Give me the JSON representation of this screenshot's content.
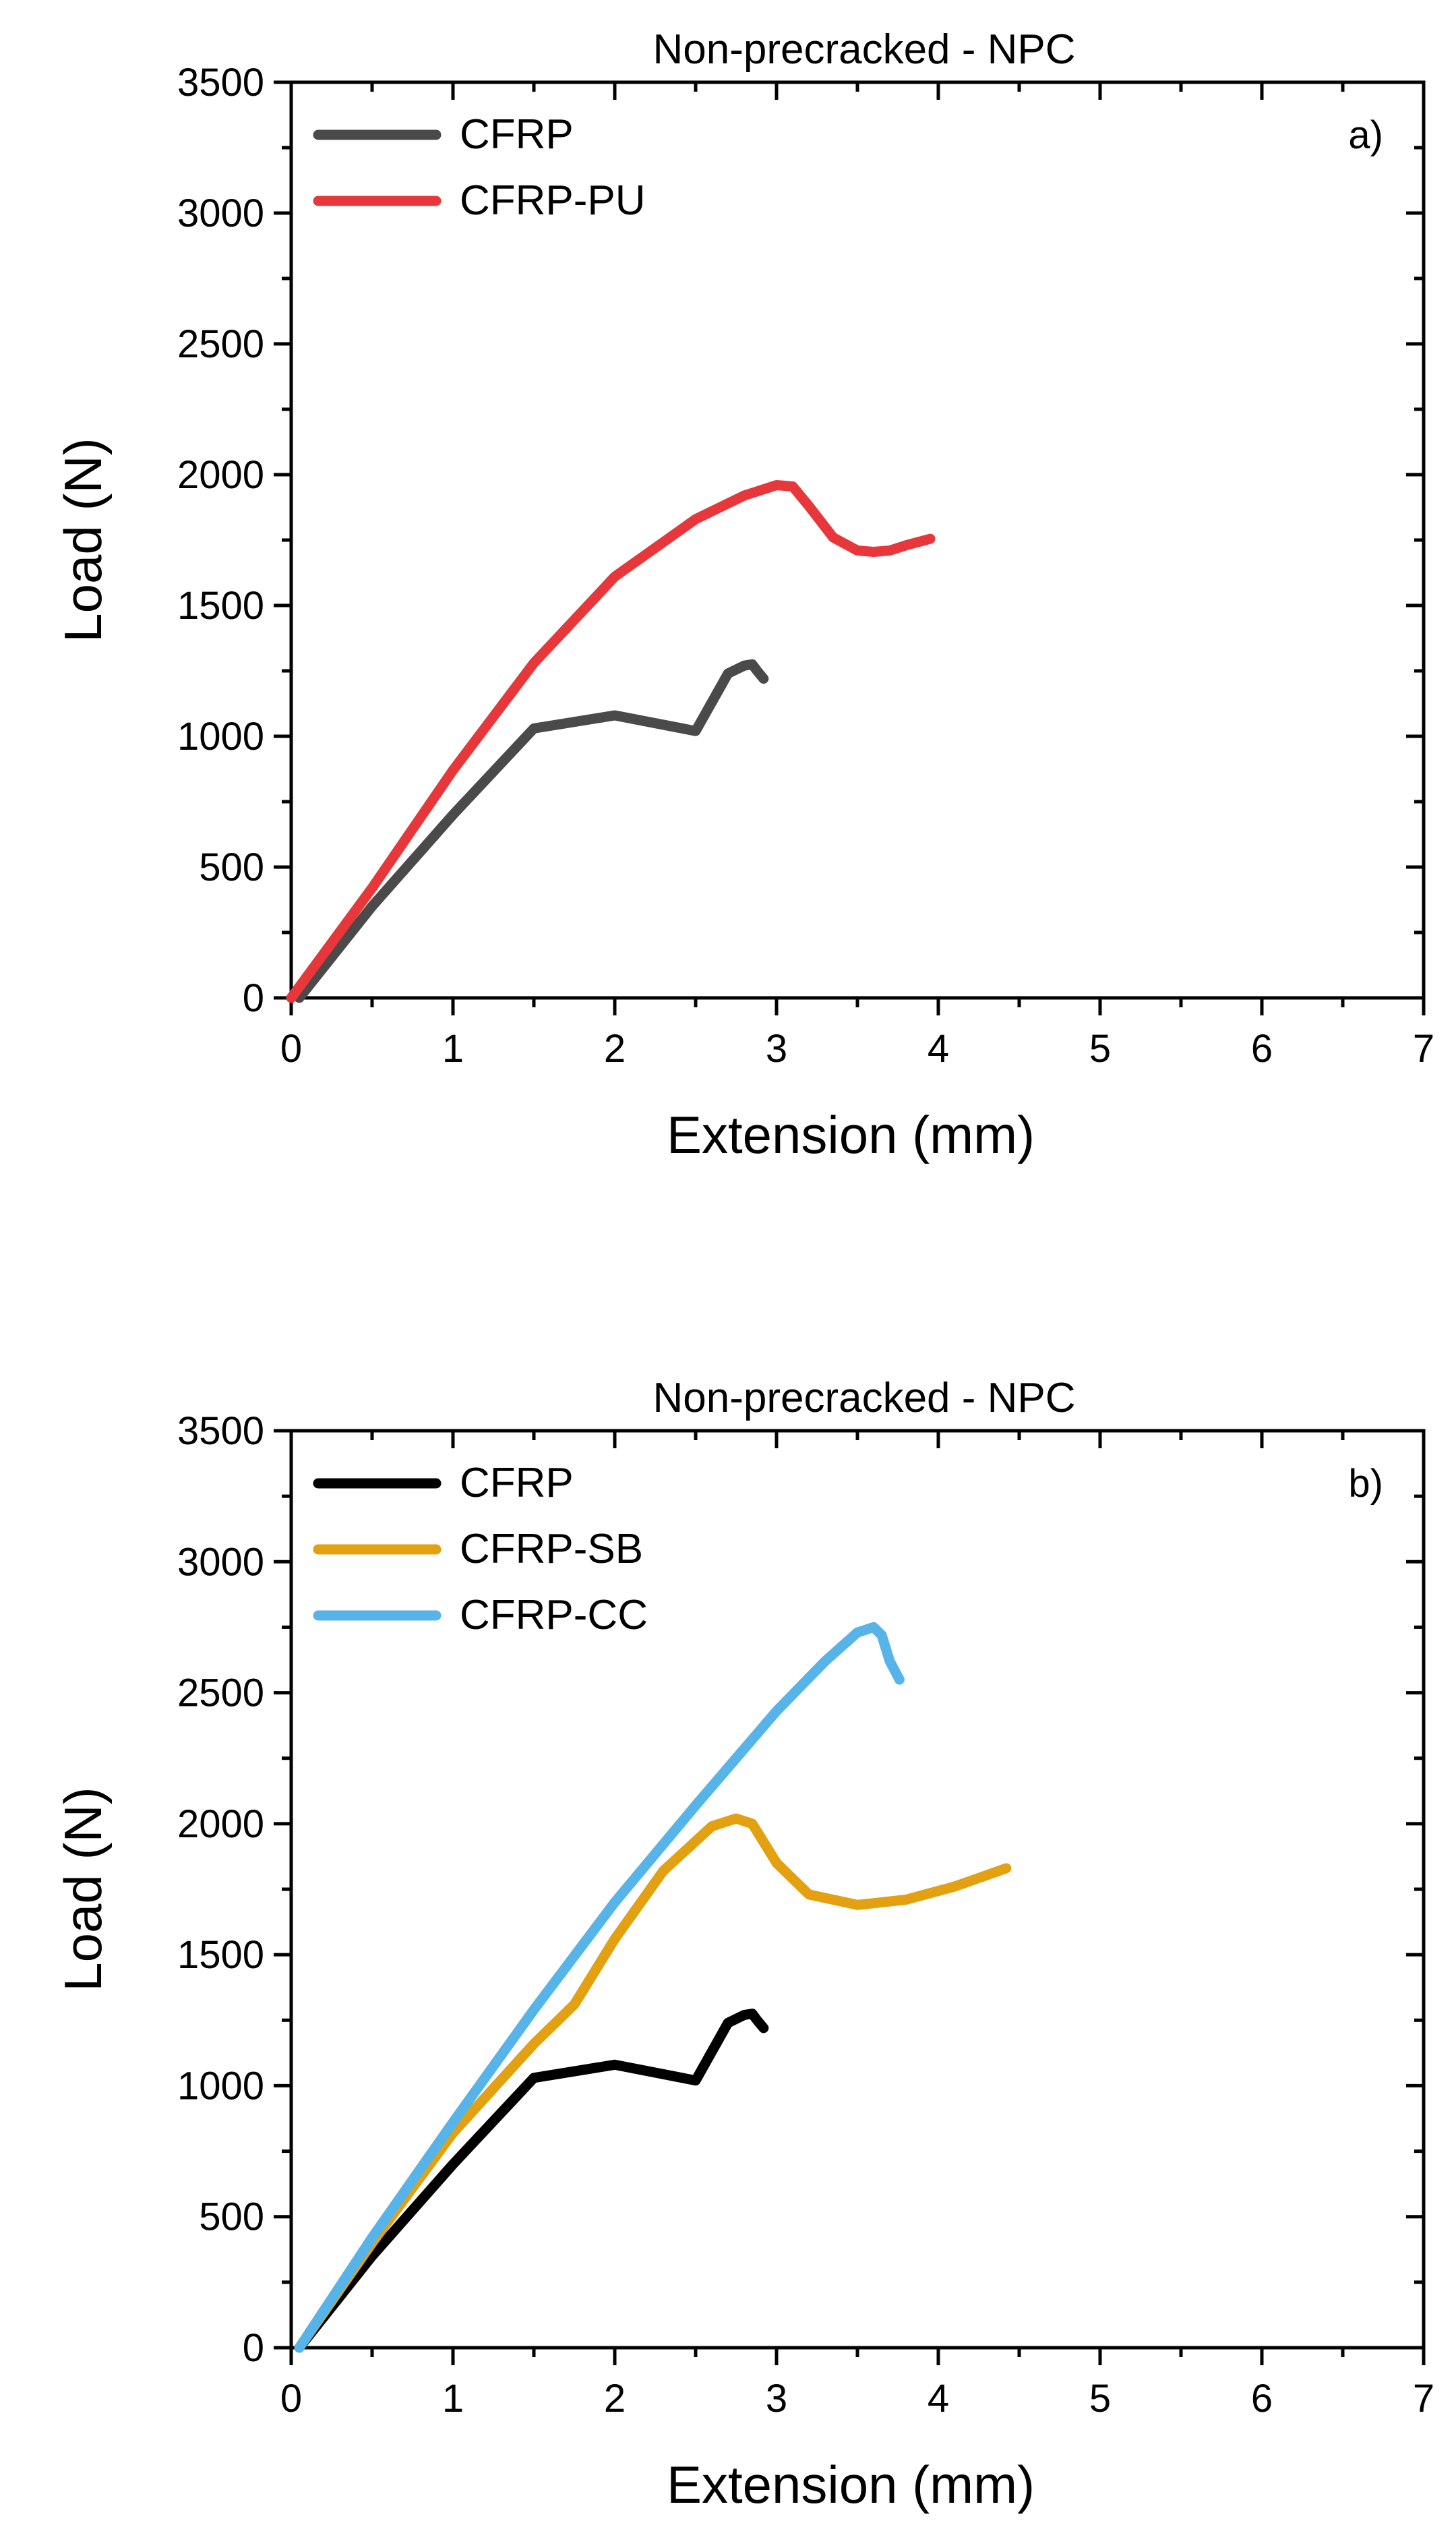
{
  "chart_data": [
    {
      "type": "line",
      "title": "Non-precracked - NPC",
      "panel_label": "a)",
      "xlabel": "Extension (mm)",
      "ylabel": "Load (N)",
      "xlim": [
        0,
        7
      ],
      "ylim": [
        0,
        3500
      ],
      "xticks": [
        "0",
        "1",
        "2",
        "3",
        "4",
        "5",
        "6",
        "7"
      ],
      "yticks": [
        "0",
        "500",
        "1000",
        "1500",
        "2000",
        "2500",
        "3000",
        "3500"
      ],
      "legend_position": "top-left",
      "series": [
        {
          "name": "CFRP",
          "color": "#4a4a4a",
          "x": [
            0.05,
            0.5,
            1.0,
            1.5,
            2.0,
            2.5,
            2.7,
            2.8,
            2.85,
            2.88,
            2.92
          ],
          "y": [
            0,
            350,
            700,
            1030,
            1080,
            1020,
            1240,
            1270,
            1275,
            1250,
            1220
          ]
        },
        {
          "name": "CFRP-PU",
          "color": "#e8373a",
          "x": [
            0.0,
            0.5,
            1.0,
            1.5,
            2.0,
            2.5,
            2.8,
            3.0,
            3.1,
            3.2,
            3.35,
            3.5,
            3.6,
            3.7,
            3.8,
            3.95
          ],
          "y": [
            0,
            420,
            870,
            1280,
            1610,
            1830,
            1920,
            1960,
            1955,
            1880,
            1760,
            1710,
            1705,
            1710,
            1730,
            1755
          ]
        }
      ]
    },
    {
      "type": "line",
      "title": "Non-precracked - NPC",
      "panel_label": "b)",
      "xlabel": "Extension (mm)",
      "ylabel": "Load (N)",
      "xlim": [
        0,
        7
      ],
      "ylim": [
        0,
        3500
      ],
      "xticks": [
        "0",
        "1",
        "2",
        "3",
        "4",
        "5",
        "6",
        "7"
      ],
      "yticks": [
        "0",
        "500",
        "1000",
        "1500",
        "2000",
        "2500",
        "3000",
        "3500"
      ],
      "legend_position": "top-left",
      "series": [
        {
          "name": "CFRP",
          "color": "#000000",
          "x": [
            0.05,
            0.5,
            1.0,
            1.5,
            2.0,
            2.5,
            2.7,
            2.8,
            2.85,
            2.88,
            2.92
          ],
          "y": [
            0,
            350,
            700,
            1030,
            1080,
            1020,
            1240,
            1270,
            1275,
            1250,
            1220
          ]
        },
        {
          "name": "CFRP-SB",
          "color": "#e3a010",
          "x": [
            0.05,
            0.5,
            1.0,
            1.5,
            1.75,
            2.0,
            2.3,
            2.6,
            2.75,
            2.85,
            3.0,
            3.2,
            3.5,
            3.8,
            4.1,
            4.42
          ],
          "y": [
            0,
            400,
            820,
            1160,
            1310,
            1560,
            1820,
            1990,
            2020,
            2000,
            1850,
            1730,
            1690,
            1710,
            1760,
            1830
          ]
        },
        {
          "name": "CFRP-CC",
          "color": "#56b4e9",
          "x": [
            0.05,
            0.5,
            1.0,
            1.5,
            2.0,
            2.5,
            3.0,
            3.3,
            3.5,
            3.6,
            3.65,
            3.7,
            3.76
          ],
          "y": [
            0,
            420,
            860,
            1290,
            1700,
            2070,
            2430,
            2620,
            2730,
            2750,
            2720,
            2620,
            2550
          ]
        }
      ]
    }
  ]
}
